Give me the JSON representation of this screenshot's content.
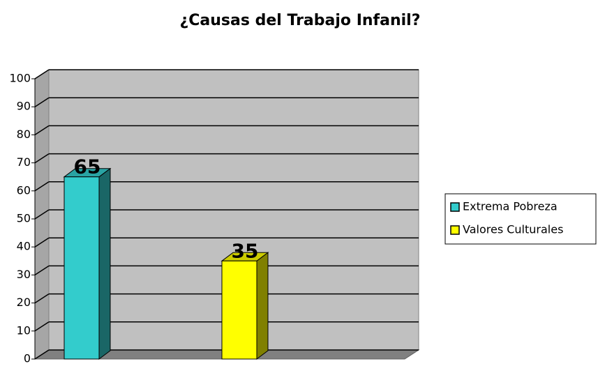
{
  "chart_data": {
    "type": "bar3d",
    "title": "¿Causas del Trabajo Infanil?",
    "categories": [
      null
    ],
    "series": [
      {
        "name": "Extrema Pobreza",
        "color": "#33cccc",
        "values": [
          65
        ]
      },
      {
        "name": "Valores Culturales",
        "color": "#ffff00",
        "values": [
          35
        ]
      }
    ],
    "ylim": [
      0,
      100
    ],
    "yticks": [
      0,
      10,
      20,
      30,
      40,
      50,
      60,
      70,
      80,
      90,
      100
    ],
    "grid": true,
    "legend": "right"
  }
}
